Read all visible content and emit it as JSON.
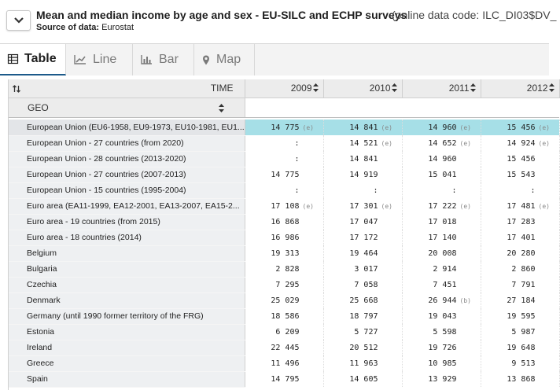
{
  "header": {
    "title": "Mean and median income by age and sex - EU-SILC and ECHP surveys",
    "code_text": "(online data code: ILC_DI03$DV_",
    "source_label": "Source of data:",
    "source_value": "Eurostat"
  },
  "tabs": [
    {
      "label": "Table",
      "icon": "table-icon",
      "active": true
    },
    {
      "label": "Line",
      "icon": "line-chart-icon",
      "active": false
    },
    {
      "label": "Bar",
      "icon": "bar-chart-icon",
      "active": false
    },
    {
      "label": "Map",
      "icon": "map-pin-icon",
      "active": false
    }
  ],
  "table": {
    "time_label": "TIME",
    "geo_label": "GEO",
    "years": [
      "2009",
      "2010",
      "2011",
      "2012"
    ],
    "rows": [
      {
        "geo": "European Union (EU6-1958, EU9-1973, EU10-1981, EU1...",
        "highlight": true,
        "values": [
          {
            "v": "14 775",
            "f": "(e)"
          },
          {
            "v": "14 841",
            "f": "(e)"
          },
          {
            "v": "14 960",
            "f": "(e)"
          },
          {
            "v": "15 456",
            "f": "(e)"
          }
        ]
      },
      {
        "geo": "European Union - 27 countries (from 2020)",
        "values": [
          {
            "v": ":",
            "f": ""
          },
          {
            "v": "14 521",
            "f": "(e)"
          },
          {
            "v": "14 652",
            "f": "(e)"
          },
          {
            "v": "14 924",
            "f": "(e)"
          }
        ]
      },
      {
        "geo": "European Union - 28 countries (2013-2020)",
        "values": [
          {
            "v": ":",
            "f": ""
          },
          {
            "v": "14 841",
            "f": ""
          },
          {
            "v": "14 960",
            "f": ""
          },
          {
            "v": "15 456",
            "f": ""
          }
        ]
      },
      {
        "geo": "European Union - 27 countries (2007-2013)",
        "values": [
          {
            "v": "14 775",
            "f": ""
          },
          {
            "v": "14 919",
            "f": ""
          },
          {
            "v": "15 041",
            "f": ""
          },
          {
            "v": "15 543",
            "f": ""
          }
        ]
      },
      {
        "geo": "European Union - 15 countries (1995-2004)",
        "values": [
          {
            "v": ":",
            "f": ""
          },
          {
            "v": ":",
            "f": ""
          },
          {
            "v": ":",
            "f": ""
          },
          {
            "v": ":",
            "f": ""
          }
        ]
      },
      {
        "geo": "Euro area (EA11-1999, EA12-2001, EA13-2007, EA15-2...",
        "values": [
          {
            "v": "17 108",
            "f": "(e)"
          },
          {
            "v": "17 301",
            "f": "(e)"
          },
          {
            "v": "17 222",
            "f": "(e)"
          },
          {
            "v": "17 481",
            "f": "(e)"
          }
        ]
      },
      {
        "geo": "Euro area - 19 countries (from 2015)",
        "values": [
          {
            "v": "16 868",
            "f": ""
          },
          {
            "v": "17 047",
            "f": ""
          },
          {
            "v": "17 018",
            "f": ""
          },
          {
            "v": "17 283",
            "f": ""
          }
        ]
      },
      {
        "geo": "Euro area - 18 countries (2014)",
        "values": [
          {
            "v": "16 986",
            "f": ""
          },
          {
            "v": "17 172",
            "f": ""
          },
          {
            "v": "17 140",
            "f": ""
          },
          {
            "v": "17 401",
            "f": ""
          }
        ]
      },
      {
        "geo": "Belgium",
        "values": [
          {
            "v": "19 313",
            "f": ""
          },
          {
            "v": "19 464",
            "f": ""
          },
          {
            "v": "20 008",
            "f": ""
          },
          {
            "v": "20 280",
            "f": ""
          }
        ]
      },
      {
        "geo": "Bulgaria",
        "values": [
          {
            "v": "2 828",
            "f": ""
          },
          {
            "v": "3 017",
            "f": ""
          },
          {
            "v": "2 914",
            "f": ""
          },
          {
            "v": "2 860",
            "f": ""
          }
        ]
      },
      {
        "geo": "Czechia",
        "values": [
          {
            "v": "7 295",
            "f": ""
          },
          {
            "v": "7 058",
            "f": ""
          },
          {
            "v": "7 451",
            "f": ""
          },
          {
            "v": "7 791",
            "f": ""
          }
        ]
      },
      {
        "geo": "Denmark",
        "values": [
          {
            "v": "25 029",
            "f": ""
          },
          {
            "v": "25 668",
            "f": ""
          },
          {
            "v": "26 944",
            "f": "(b)"
          },
          {
            "v": "27 184",
            "f": ""
          }
        ]
      },
      {
        "geo": "Germany (until 1990 former territory of the FRG)",
        "values": [
          {
            "v": "18 586",
            "f": ""
          },
          {
            "v": "18 797",
            "f": ""
          },
          {
            "v": "19 043",
            "f": ""
          },
          {
            "v": "19 595",
            "f": ""
          }
        ]
      },
      {
        "geo": "Estonia",
        "values": [
          {
            "v": "6 209",
            "f": ""
          },
          {
            "v": "5 727",
            "f": ""
          },
          {
            "v": "5 598",
            "f": ""
          },
          {
            "v": "5 987",
            "f": ""
          }
        ]
      },
      {
        "geo": "Ireland",
        "values": [
          {
            "v": "22 445",
            "f": ""
          },
          {
            "v": "20 512",
            "f": ""
          },
          {
            "v": "19 726",
            "f": ""
          },
          {
            "v": "19 648",
            "f": ""
          }
        ]
      },
      {
        "geo": "Greece",
        "values": [
          {
            "v": "11 496",
            "f": ""
          },
          {
            "v": "11 963",
            "f": ""
          },
          {
            "v": "10 985",
            "f": ""
          },
          {
            "v": "9 513",
            "f": ""
          }
        ]
      },
      {
        "geo": "Spain",
        "values": [
          {
            "v": "14 795",
            "f": ""
          },
          {
            "v": "14 605",
            "f": ""
          },
          {
            "v": "13 929",
            "f": ""
          },
          {
            "v": "13 868",
            "f": ""
          }
        ]
      }
    ]
  },
  "colors": {
    "highlight": "#a6dfe7",
    "tab_active_border": "#1c5a8a",
    "header_bg": "#ececec"
  }
}
